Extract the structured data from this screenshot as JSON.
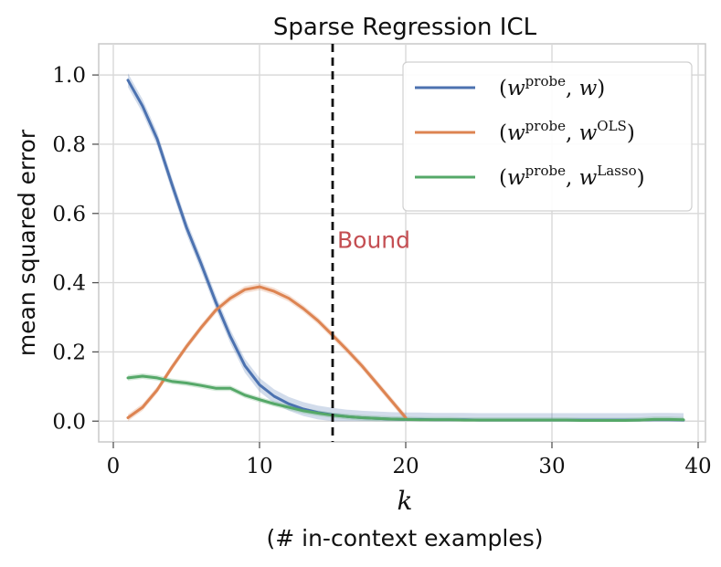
{
  "chart_data": {
    "type": "line",
    "title": "Sparse Regression ICL",
    "xlabel_var": "k",
    "xlabel_sub": "(# in-context examples)",
    "ylabel": "mean squared error",
    "xlim": [
      -1,
      40.5
    ],
    "ylim": [
      -0.06,
      1.09
    ],
    "xticks": [
      0,
      10,
      20,
      30,
      40
    ],
    "xtick_labels": [
      "0",
      "10",
      "20",
      "30",
      "40"
    ],
    "yticks": [
      0.0,
      0.2,
      0.4,
      0.6,
      0.8,
      1.0
    ],
    "ytick_labels": [
      "0.0",
      "0.2",
      "0.4",
      "0.6",
      "0.8",
      "1.0"
    ],
    "grid": true,
    "legend_position": "top-right",
    "bound": {
      "x": 15,
      "label": "Bound",
      "color": "#c44e52"
    },
    "series": [
      {
        "name": "(w^probe, w)",
        "legend": {
          "open": "(",
          "v1": "w",
          "sup1": "probe",
          "sep": ", ",
          "v2": "w",
          "sup2": "",
          "close": ")"
        },
        "color": "#4c72b0",
        "x": [
          1,
          2,
          3,
          4,
          5,
          6,
          7,
          8,
          9,
          10,
          11,
          12,
          13,
          14,
          15,
          16,
          17,
          18,
          19,
          20,
          21,
          22,
          23,
          24,
          25,
          26,
          27,
          28,
          29,
          30,
          31,
          32,
          33,
          34,
          35,
          36,
          37,
          38,
          39
        ],
        "values": [
          0.985,
          0.91,
          0.815,
          0.685,
          0.56,
          0.455,
          0.345,
          0.245,
          0.16,
          0.105,
          0.072,
          0.05,
          0.035,
          0.025,
          0.018,
          0.013,
          0.01,
          0.008,
          0.006,
          0.005,
          0.005,
          0.004,
          0.004,
          0.004,
          0.003,
          0.003,
          0.003,
          0.003,
          0.003,
          0.003,
          0.003,
          0.003,
          0.003,
          0.003,
          0.003,
          0.003,
          0.004,
          0.004,
          0.003
        ],
        "band": 0.02
      },
      {
        "name": "(w^probe, w^OLS)",
        "legend": {
          "open": "(",
          "v1": "w",
          "sup1": "probe",
          "sep": ", ",
          "v2": "w",
          "sup2": "OLS",
          "close": ")"
        },
        "color": "#dd8452",
        "x": [
          1,
          2,
          3,
          4,
          5,
          6,
          7,
          8,
          9,
          10,
          11,
          12,
          13,
          14,
          15,
          16,
          17,
          18,
          19,
          20
        ],
        "values": [
          0.01,
          0.04,
          0.09,
          0.155,
          0.215,
          0.27,
          0.32,
          0.355,
          0.38,
          0.388,
          0.375,
          0.355,
          0.325,
          0.29,
          0.248,
          0.205,
          0.16,
          0.11,
          0.06,
          0.01
        ],
        "band": 0.01
      },
      {
        "name": "(w^probe, w^Lasso)",
        "legend": {
          "open": "(",
          "v1": "w",
          "sup1": "probe",
          "sep": ", ",
          "v2": "w",
          "sup2": "Lasso",
          "close": ")"
        },
        "color": "#55a868",
        "x": [
          1,
          2,
          3,
          4,
          5,
          6,
          7,
          8,
          9,
          10,
          11,
          12,
          13,
          14,
          15,
          16,
          17,
          18,
          19,
          20,
          21,
          22,
          23,
          24,
          25,
          26,
          27,
          28,
          29,
          30,
          31,
          32,
          33,
          34,
          35,
          36,
          37,
          38,
          39
        ],
        "values": [
          0.125,
          0.13,
          0.125,
          0.115,
          0.11,
          0.103,
          0.095,
          0.095,
          0.075,
          0.062,
          0.05,
          0.04,
          0.03,
          0.023,
          0.017,
          0.013,
          0.01,
          0.008,
          0.006,
          0.005,
          0.004,
          0.004,
          0.004,
          0.003,
          0.003,
          0.003,
          0.003,
          0.003,
          0.003,
          0.003,
          0.003,
          0.002,
          0.002,
          0.002,
          0.002,
          0.003,
          0.005,
          0.005,
          0.004
        ],
        "band": 0.008
      }
    ]
  }
}
